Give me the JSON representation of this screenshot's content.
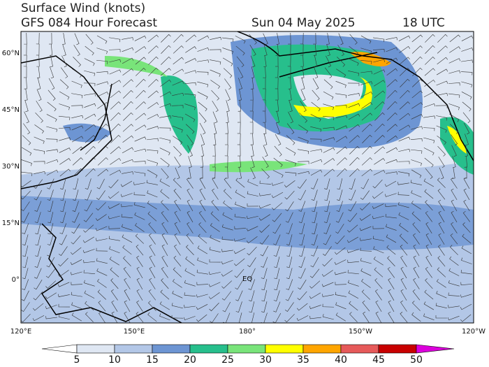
{
  "header": {
    "title": "Surface Wind (knots)",
    "subtitle": "GFS 084 Hour Forecast",
    "date": "Sun 04 May 2025",
    "time": "18 UTC"
  },
  "map": {
    "lat_labels": [
      "60°N",
      "45°N",
      "30°N",
      "15°N",
      "0°"
    ],
    "lon_labels": [
      "120°E",
      "150°E",
      "180°",
      "150°W",
      "120°W"
    ],
    "annotation": "EQ"
  },
  "colorbar": {
    "levels": [
      5,
      10,
      15,
      20,
      25,
      30,
      35,
      40,
      45,
      50
    ],
    "colors": [
      "#ffffff",
      "#dfe7f3",
      "#b3c7e7",
      "#6d95d3",
      "#27bf8c",
      "#79e47a",
      "#ffff00",
      "#ffa500",
      "#e65a5a",
      "#c80000",
      "#dc00dc"
    ]
  }
}
